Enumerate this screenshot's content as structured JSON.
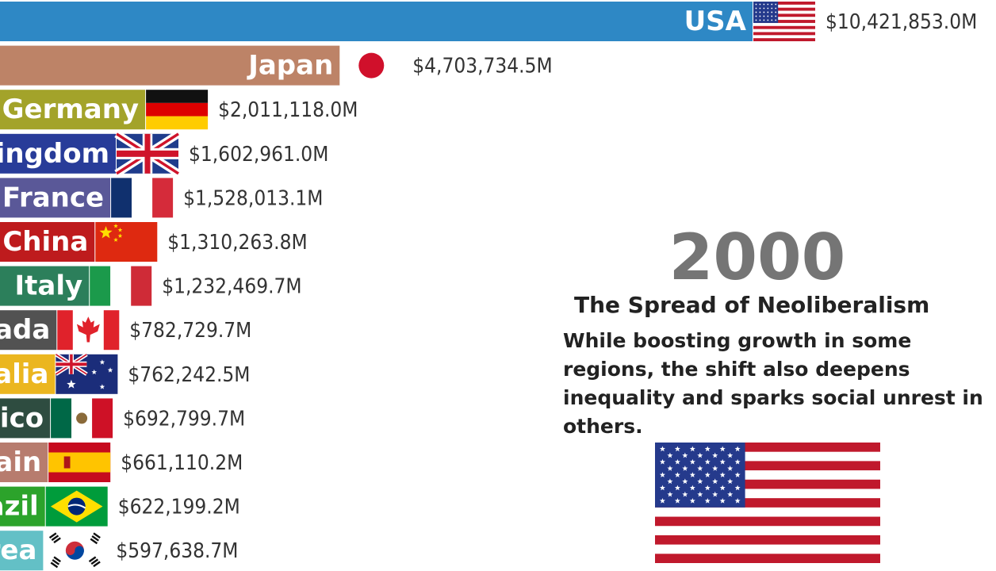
{
  "chart_data": {
    "type": "bar",
    "orientation": "horizontal",
    "categories": [
      "USA",
      "Japan",
      "Germany",
      "United Kingdom",
      "France",
      "China",
      "Italy",
      "Canada",
      "Australia",
      "Mexico",
      "Spain",
      "Brazil",
      "South Korea"
    ],
    "values": [
      10421853.0,
      4703734.5,
      2011118.0,
      1602961.0,
      1528013.1,
      1310263.8,
      1232469.7,
      782729.7,
      762242.5,
      692799.7,
      661110.2,
      622199.2,
      597638.7
    ],
    "value_labels": [
      "$10,421,853.0M",
      "$4,703,734.5M",
      "$2,011,118.0M",
      "$1,602,961.0M",
      "$1,528,013.1M",
      "$1,310,263.8M",
      "$1,232,469.7M",
      "$782,729.7M",
      "$762,242.5M",
      "$692,799.7M",
      "$661,110.2M",
      "$622,199.2M",
      "$597,638.7M"
    ],
    "bar_colors": [
      "#2e88c5",
      "#bd8367",
      "#a3a32a",
      "#283c99",
      "#5a5898",
      "#be1b1d",
      "#2c7f5b",
      "#525252",
      "#ebb61f",
      "#2e4c40",
      "#b77c6e",
      "#2ca32b",
      "#63c0c6"
    ],
    "flags": [
      "us-flag",
      "japan-flag",
      "germany-flag",
      "uk-flag",
      "france-flag",
      "china-flag",
      "italy-flag",
      "canada-flag",
      "australia-flag",
      "mexico-flag",
      "spain-flag",
      "brazil-flag",
      "south-korea-flag"
    ],
    "grid": false,
    "legend": "none"
  },
  "annotation": {
    "year": "2000",
    "headline": "The Spread of Neoliberalism",
    "description": "While boosting growth in some regions, the shift also deepens inequality and sparks social unrest in others.",
    "flag": "us-flag"
  }
}
